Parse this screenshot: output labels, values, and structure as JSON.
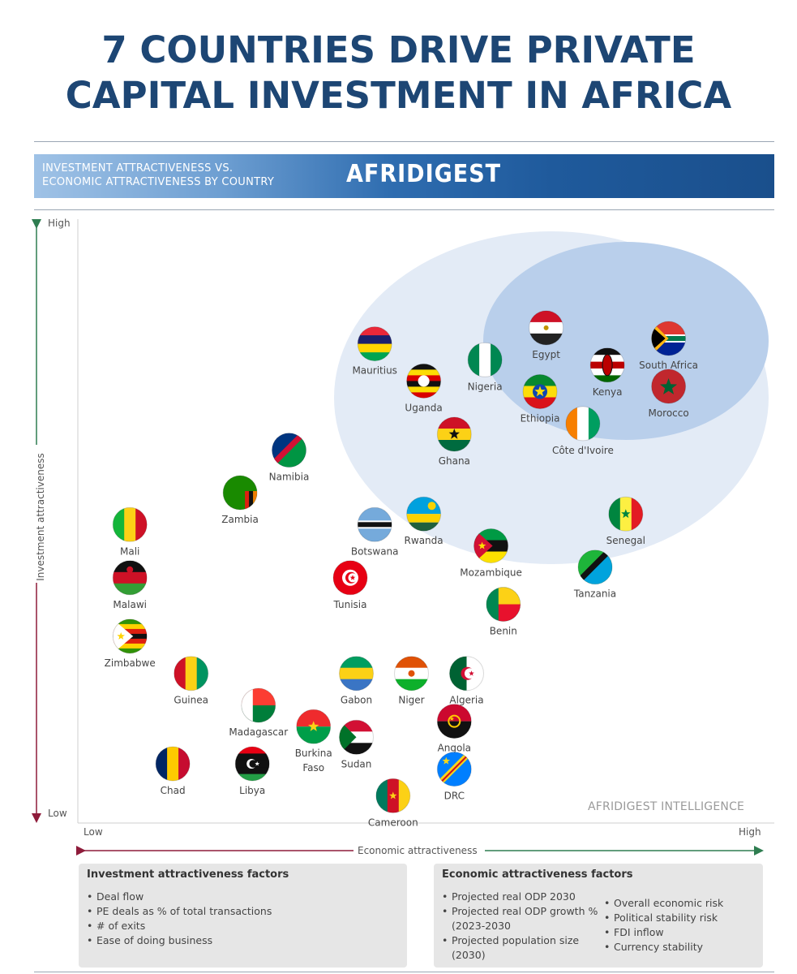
{
  "title_line1": "7 COUNTRIES DRIVE PRIVATE",
  "title_line2": "CAPITAL INVESTMENT IN AFRICA",
  "banner": {
    "subtitle_line1": "INVESTMENT ATTRACTIVENESS VS.",
    "subtitle_line2": "ECONOMIC ATTRACTIVENESS BY COUNTRY",
    "brand": "AFRIDIGEST"
  },
  "watermark": "AFRIDIGEST INTELLIGENCE",
  "colors": {
    "title": "#1d4674",
    "highlight": "#1f5aa8",
    "arrow_green": "#2e7d50",
    "arrow_red": "#8e1b3a"
  },
  "chart_data": {
    "type": "scatter",
    "xlabel": "Economic attractiveness",
    "ylabel": "Investment attractiveness",
    "x_low": "Low",
    "x_high": "High",
    "y_low": "Low",
    "y_high": "High",
    "xlim": [
      0,
      100
    ],
    "ylim": [
      0,
      100
    ],
    "points": [
      {
        "label": "Egypt",
        "x": 72,
        "y": 91,
        "highlight": true
      },
      {
        "label": "South Africa",
        "x": 92,
        "y": 89,
        "highlight": true
      },
      {
        "label": "Nigeria",
        "x": 62,
        "y": 85,
        "highlight": true
      },
      {
        "label": "Kenya",
        "x": 82,
        "y": 84,
        "highlight": true
      },
      {
        "label": "Morocco",
        "x": 92,
        "y": 80,
        "highlight": true
      },
      {
        "label": "Ethiopia",
        "x": 71,
        "y": 79,
        "highlight": true
      },
      {
        "label": "Côte d'Ivoire",
        "x": 78,
        "y": 73,
        "highlight": true
      },
      {
        "label": "Mauritius",
        "x": 44,
        "y": 88
      },
      {
        "label": "Uganda",
        "x": 52,
        "y": 81
      },
      {
        "label": "Ghana",
        "x": 57,
        "y": 71
      },
      {
        "label": "Namibia",
        "x": 30,
        "y": 68
      },
      {
        "label": "Zambia",
        "x": 22,
        "y": 60
      },
      {
        "label": "Mali",
        "x": 4,
        "y": 54
      },
      {
        "label": "Botswana",
        "x": 44,
        "y": 54
      },
      {
        "label": "Rwanda",
        "x": 52,
        "y": 56
      },
      {
        "label": "Senegal",
        "x": 85,
        "y": 56
      },
      {
        "label": "Mozambique",
        "x": 63,
        "y": 50
      },
      {
        "label": "Tanzania",
        "x": 80,
        "y": 46
      },
      {
        "label": "Malawi",
        "x": 4,
        "y": 44
      },
      {
        "label": "Tunisia",
        "x": 40,
        "y": 44
      },
      {
        "label": "Benin",
        "x": 65,
        "y": 39
      },
      {
        "label": "Zimbabwe",
        "x": 4,
        "y": 33
      },
      {
        "label": "Guinea",
        "x": 14,
        "y": 26
      },
      {
        "label": "Gabon",
        "x": 41,
        "y": 26
      },
      {
        "label": "Niger",
        "x": 50,
        "y": 26
      },
      {
        "label": "Algeria",
        "x": 59,
        "y": 26
      },
      {
        "label": "Madagascar",
        "x": 25,
        "y": 20
      },
      {
        "label": "Burkina Faso",
        "x": 34,
        "y": 16
      },
      {
        "label": "Sudan",
        "x": 41,
        "y": 14
      },
      {
        "label": "Angola",
        "x": 57,
        "y": 17
      },
      {
        "label": "Chad",
        "x": 11,
        "y": 9
      },
      {
        "label": "Libya",
        "x": 24,
        "y": 9
      },
      {
        "label": "DRC",
        "x": 57,
        "y": 8
      },
      {
        "label": "Cameroon",
        "x": 47,
        "y": 3
      }
    ]
  },
  "factors": {
    "investment": {
      "title": "Investment attractiveness factors",
      "items": [
        "Deal flow",
        "PE deals as % of total transactions",
        "# of exits",
        "Ease of doing business"
      ]
    },
    "economic": {
      "title": "Economic attractiveness factors",
      "col1": [
        "Projected real ODP 2030",
        "Projected real ODP growth % (2023-2030",
        "Projected population size (2030)"
      ],
      "col2": [
        "Overall economic risk",
        "Political stability risk",
        "FDI inflow",
        "Currency stability"
      ]
    }
  }
}
